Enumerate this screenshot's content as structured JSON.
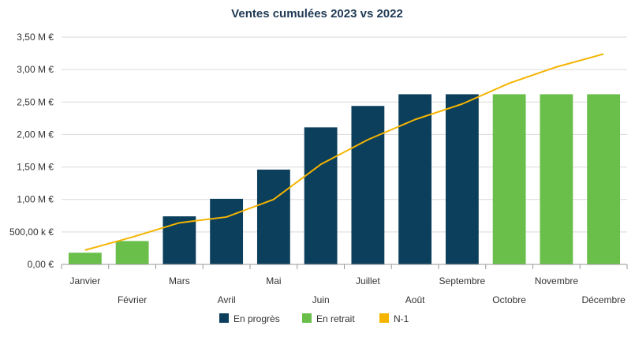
{
  "chart_data": {
    "type": "bar",
    "title": "Ventes cumulées 2023 vs 2022",
    "xlabel": "",
    "ylabel": "",
    "ylim": [
      0,
      3500000
    ],
    "yticks": [
      0,
      500000,
      1000000,
      1500000,
      2000000,
      2500000,
      3000000,
      3500000
    ],
    "ytick_labels": [
      "0,00 €",
      "500,00 k €",
      "1,00 M €",
      "1,50 M €",
      "2,00 M €",
      "2,50 M €",
      "3,00 M €",
      "3,50 M €"
    ],
    "grid": true,
    "legend_position": "bottom",
    "categories": [
      "Janvier",
      "Février",
      "Mars",
      "Avril",
      "Mai",
      "Juin",
      "Juillet",
      "Août",
      "Septembre",
      "Octobre",
      "Novembre",
      "Décembre"
    ],
    "series": [
      {
        "name": "En progrès",
        "type": "bar",
        "color": "#0b3f5c",
        "values": [
          null,
          null,
          740000,
          1010000,
          1460000,
          2110000,
          2440000,
          2620000,
          2620000,
          null,
          null,
          null
        ]
      },
      {
        "name": "En retrait",
        "type": "bar",
        "color": "#6abf4b",
        "values": [
          180000,
          360000,
          null,
          null,
          null,
          null,
          null,
          null,
          null,
          2620000,
          2620000,
          2620000
        ]
      },
      {
        "name": "N-1",
        "type": "line",
        "color": "#f5b400",
        "values": [
          220000,
          420000,
          640000,
          730000,
          1000000,
          1540000,
          1920000,
          2230000,
          2470000,
          2790000,
          3040000,
          3240000
        ]
      }
    ]
  }
}
